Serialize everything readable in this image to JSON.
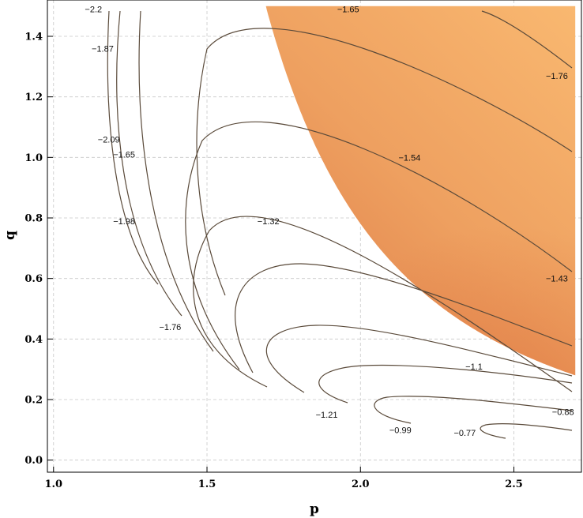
{
  "chart_data": {
    "type": "contour",
    "title": "",
    "xlabel": "p",
    "ylabel": "q",
    "xlim": [
      0.98,
      2.72
    ],
    "ylim": [
      -0.04,
      1.52
    ],
    "xticks": [
      "1.0",
      "1.5",
      "2.0",
      "2.5"
    ],
    "yticks": [
      "0.0",
      "0.2",
      "0.4",
      "0.6",
      "0.8",
      "1.0",
      "1.2",
      "1.4"
    ],
    "grid": true,
    "colors": {
      "fill_light": "#f7b06a",
      "fill_dark": "#e2854a",
      "contour": "#5a4a3a",
      "grid": "#c8c8c8"
    },
    "contour_labels": [
      {
        "text": "−2.2",
        "x": 1.13,
        "y": 1.49
      },
      {
        "text": "−1.65",
        "x": 1.96,
        "y": 1.49
      },
      {
        "text": "−1.87",
        "x": 1.16,
        "y": 1.36
      },
      {
        "text": "−1.76",
        "x": 2.64,
        "y": 1.27
      },
      {
        "text": "−2.09",
        "x": 1.18,
        "y": 1.06
      },
      {
        "text": "−1.65",
        "x": 1.23,
        "y": 1.01
      },
      {
        "text": "−1.54",
        "x": 2.16,
        "y": 1.0
      },
      {
        "text": "−1.98",
        "x": 1.23,
        "y": 0.79
      },
      {
        "text": "−1.32",
        "x": 1.7,
        "y": 0.79
      },
      {
        "text": "−1.43",
        "x": 2.64,
        "y": 0.6
      },
      {
        "text": "−1.76",
        "x": 1.38,
        "y": 0.44
      },
      {
        "text": "−1.1",
        "x": 2.37,
        "y": 0.31
      },
      {
        "text": "−0.88",
        "x": 2.66,
        "y": 0.16
      },
      {
        "text": "−1.21",
        "x": 1.89,
        "y": 0.15
      },
      {
        "text": "−0.99",
        "x": 2.13,
        "y": 0.1
      },
      {
        "text": "−0.77",
        "x": 2.34,
        "y": 0.09
      }
    ]
  }
}
